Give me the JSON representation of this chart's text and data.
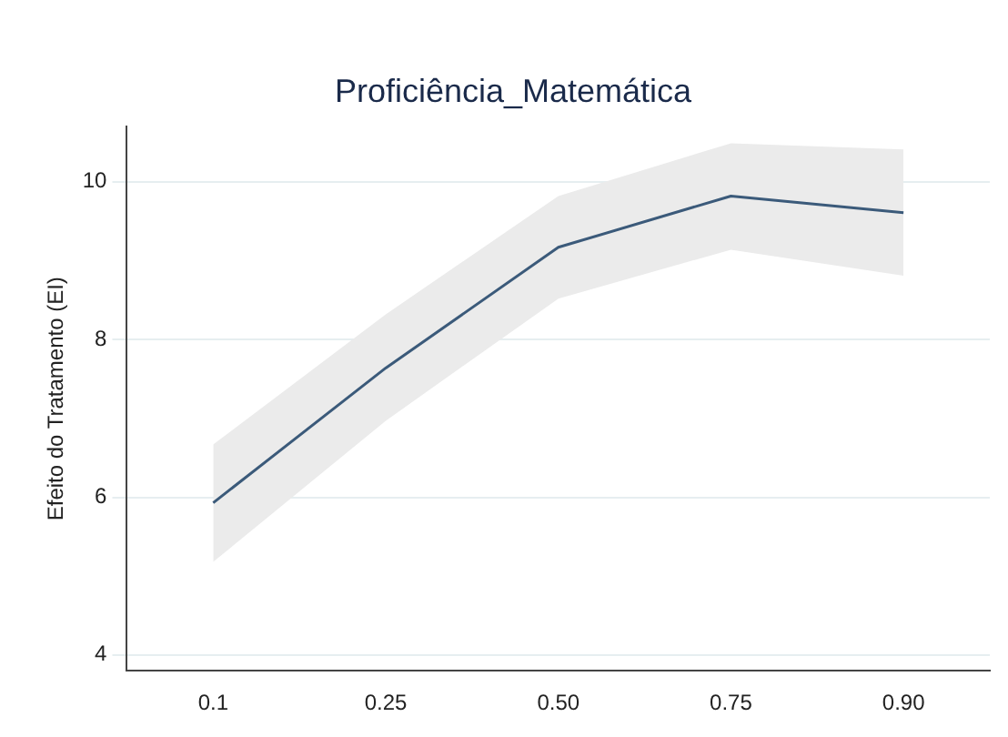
{
  "chart_data": {
    "type": "line",
    "title": "Proficiência_Matemática",
    "ylabel": "Efeito do Tratamento (EI)",
    "categories": [
      "0.1",
      "0.25",
      "0.50",
      "0.75",
      "0.90"
    ],
    "series": [
      {
        "color": "#3b5a7a",
        "values": [
          5.93,
          7.64,
          9.17,
          9.82,
          9.61
        ],
        "lower": [
          5.18,
          6.97,
          8.52,
          9.14,
          8.81
        ],
        "upper": [
          6.67,
          8.32,
          9.82,
          10.49,
          10.41
        ]
      }
    ],
    "ylim": [
      3.8,
      10.7
    ],
    "yticks": [
      4,
      6,
      8,
      10
    ],
    "grid": "y",
    "legend": false,
    "marker": "none",
    "line_style": "solid"
  }
}
